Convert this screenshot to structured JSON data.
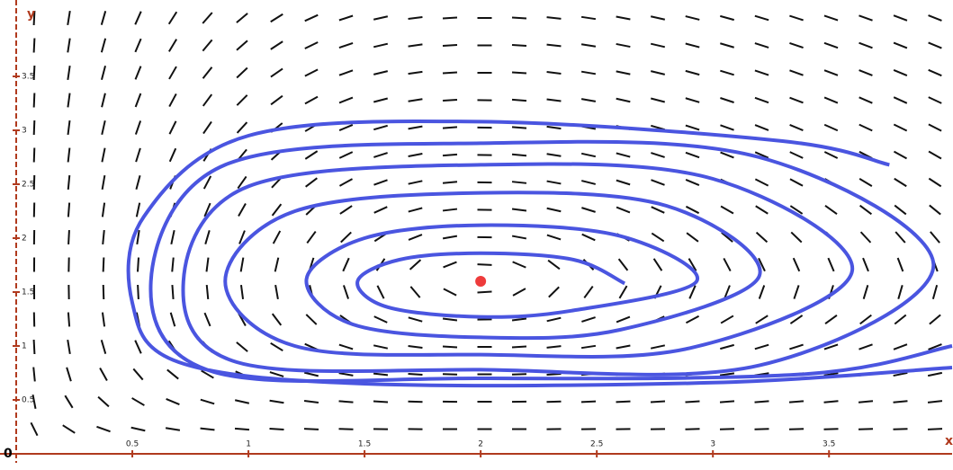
{
  "chart_data": {
    "type": "phase-portrait",
    "x_label": "x",
    "y_label": "y",
    "origin_label": "0",
    "xlim": [
      0,
      4.03
    ],
    "ylim": [
      0,
      4.2
    ],
    "xticks": [
      0.5,
      1,
      1.5,
      2,
      2.5,
      3,
      3.5
    ],
    "yticks": [
      0.5,
      1,
      1.5,
      2,
      2.5,
      3,
      3.5
    ],
    "axis_color": "#b03a1e",
    "field_color": "#111111",
    "equilibrium": {
      "x": 2,
      "y": 1.6,
      "color": "#ee3b3b"
    },
    "trajectory": {
      "color": "#4a55e0",
      "x": [
        2.62,
        2.4,
        2.0,
        1.65,
        1.47,
        1.6,
        2.0,
        2.4,
        2.93,
        2.6,
        2.0,
        1.5,
        1.25,
        1.45,
        2.0,
        2.6,
        3.2,
        2.8,
        2.0,
        1.2,
        0.9,
        1.2,
        2.0,
        2.9,
        3.6,
        3.0,
        2.0,
        1.0,
        0.72,
        0.95,
        2.0,
        3.2,
        3.95,
        3.2,
        2.0,
        0.9,
        0.58,
        0.85,
        2.0,
        3.4,
        4.03,
        null,
        3.76,
        3.3,
        2.0,
        1.0,
        0.55,
        0.5,
        0.7,
        1.5,
        3.0,
        4.03
      ],
      "y": [
        1.58,
        1.8,
        1.86,
        1.8,
        1.6,
        1.36,
        1.27,
        1.33,
        1.6,
        2.02,
        2.12,
        2.0,
        1.62,
        1.2,
        1.08,
        1.15,
        1.65,
        2.3,
        2.42,
        2.25,
        1.6,
        1.0,
        0.92,
        0.98,
        1.7,
        2.55,
        2.68,
        2.48,
        1.6,
        0.85,
        0.78,
        0.82,
        1.75,
        2.75,
        2.88,
        2.68,
        1.6,
        0.76,
        0.7,
        0.74,
        1.0,
        null,
        2.68,
        2.9,
        3.08,
        2.95,
        2.2,
        1.4,
        0.85,
        0.65,
        0.66,
        0.8
      ]
    }
  }
}
